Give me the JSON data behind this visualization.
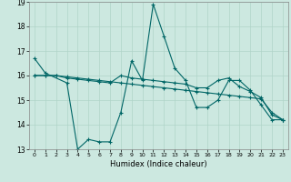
{
  "xlabel": "Humidex (Indice chaleur)",
  "background_color": "#cce8e0",
  "grid_color": "#b0d4c8",
  "line_color": "#006666",
  "xlim": [
    -0.5,
    23.5
  ],
  "ylim": [
    13,
    19
  ],
  "xticks": [
    0,
    1,
    2,
    3,
    4,
    5,
    6,
    7,
    8,
    9,
    10,
    11,
    12,
    13,
    14,
    15,
    16,
    17,
    18,
    19,
    20,
    21,
    22,
    23
  ],
  "yticks": [
    13,
    14,
    15,
    16,
    17,
    18,
    19
  ],
  "series1_x": [
    0,
    1,
    3,
    4,
    5,
    6,
    7,
    8,
    9,
    10,
    11,
    12,
    13,
    14,
    15,
    16,
    17,
    18,
    19,
    20,
    21,
    22,
    23
  ],
  "series1_y": [
    16.7,
    16.1,
    15.7,
    13.0,
    13.4,
    13.3,
    13.3,
    14.5,
    16.6,
    15.8,
    18.9,
    17.6,
    16.3,
    15.8,
    14.7,
    14.7,
    15.0,
    15.8,
    15.8,
    15.4,
    14.8,
    14.2,
    14.2
  ],
  "series2_x": [
    0,
    1,
    2,
    3,
    4,
    5,
    6,
    7,
    8,
    9,
    10,
    11,
    12,
    13,
    14,
    15,
    16,
    17,
    18,
    19,
    20,
    21,
    22,
    23
  ],
  "series2_y": [
    16.0,
    16.0,
    16.0,
    15.95,
    15.9,
    15.85,
    15.8,
    15.75,
    15.7,
    15.65,
    15.6,
    15.55,
    15.5,
    15.45,
    15.4,
    15.35,
    15.3,
    15.25,
    15.2,
    15.15,
    15.1,
    15.05,
    14.5,
    14.2
  ],
  "series3_x": [
    0,
    1,
    2,
    3,
    4,
    5,
    6,
    7,
    8,
    9,
    10,
    11,
    12,
    13,
    14,
    15,
    16,
    17,
    18,
    19,
    20,
    21,
    22,
    23
  ],
  "series3_y": [
    16.0,
    16.0,
    16.0,
    15.9,
    15.85,
    15.8,
    15.75,
    15.7,
    16.0,
    15.9,
    15.85,
    15.8,
    15.75,
    15.7,
    15.65,
    15.5,
    15.5,
    15.8,
    15.9,
    15.55,
    15.35,
    15.1,
    14.4,
    14.2
  ]
}
